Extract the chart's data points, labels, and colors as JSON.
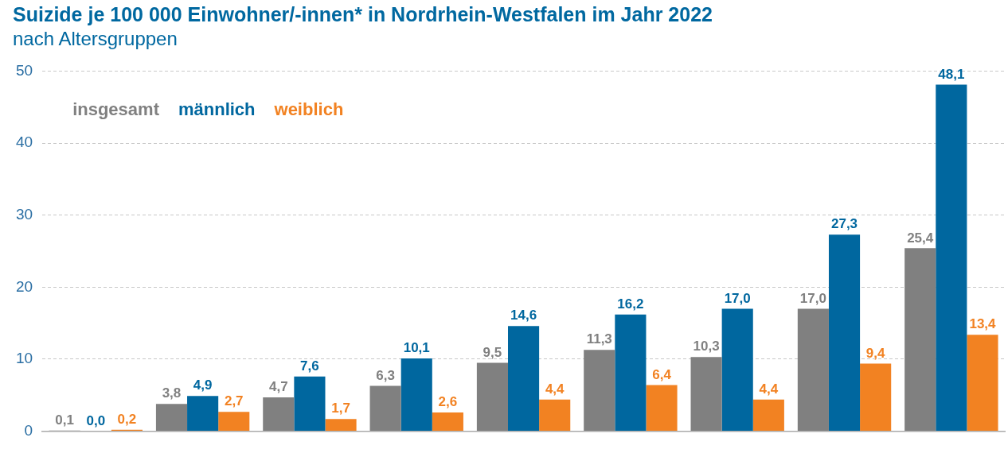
{
  "chart_data": {
    "type": "bar",
    "title": "Suizide je 100 000 Einwohner/-innen* in Nordrhein-Westfalen im Jahr 2022",
    "subtitle": "nach Altersgruppen",
    "categories": [
      null,
      null,
      null,
      null,
      null,
      null,
      null,
      null,
      null
    ],
    "series": [
      {
        "name": "insgesamt",
        "color": "#808080",
        "values": [
          0.1,
          3.8,
          4.7,
          6.3,
          9.5,
          11.3,
          10.3,
          17.0,
          25.4
        ],
        "value_labels": [
          "0,1",
          "3,8",
          "4,7",
          "6,3",
          "9,5",
          "11,3",
          "10,3",
          "17,0",
          "25,4"
        ]
      },
      {
        "name": "männlich",
        "color": "#00679f",
        "values": [
          0.0,
          4.9,
          7.6,
          10.1,
          14.6,
          16.2,
          17.0,
          27.3,
          48.1
        ],
        "value_labels": [
          "0,0",
          "4,9",
          "7,6",
          "10,1",
          "14,6",
          "16,2",
          "17,0",
          "27,3",
          "48,1"
        ]
      },
      {
        "name": "weiblich",
        "color": "#f28222",
        "values": [
          0.2,
          2.7,
          1.7,
          2.6,
          4.4,
          6.4,
          4.4,
          9.4,
          13.4
        ],
        "value_labels": [
          "0,2",
          "2,7",
          "1,7",
          "2,6",
          "4,4",
          "6,4",
          "4,4",
          "9,4",
          "13,4"
        ]
      }
    ],
    "ylim": [
      0,
      50
    ],
    "yticks": [
      0,
      10,
      20,
      30,
      40,
      50
    ],
    "grid": "y",
    "legend": "top left",
    "tick_labels": "y"
  }
}
